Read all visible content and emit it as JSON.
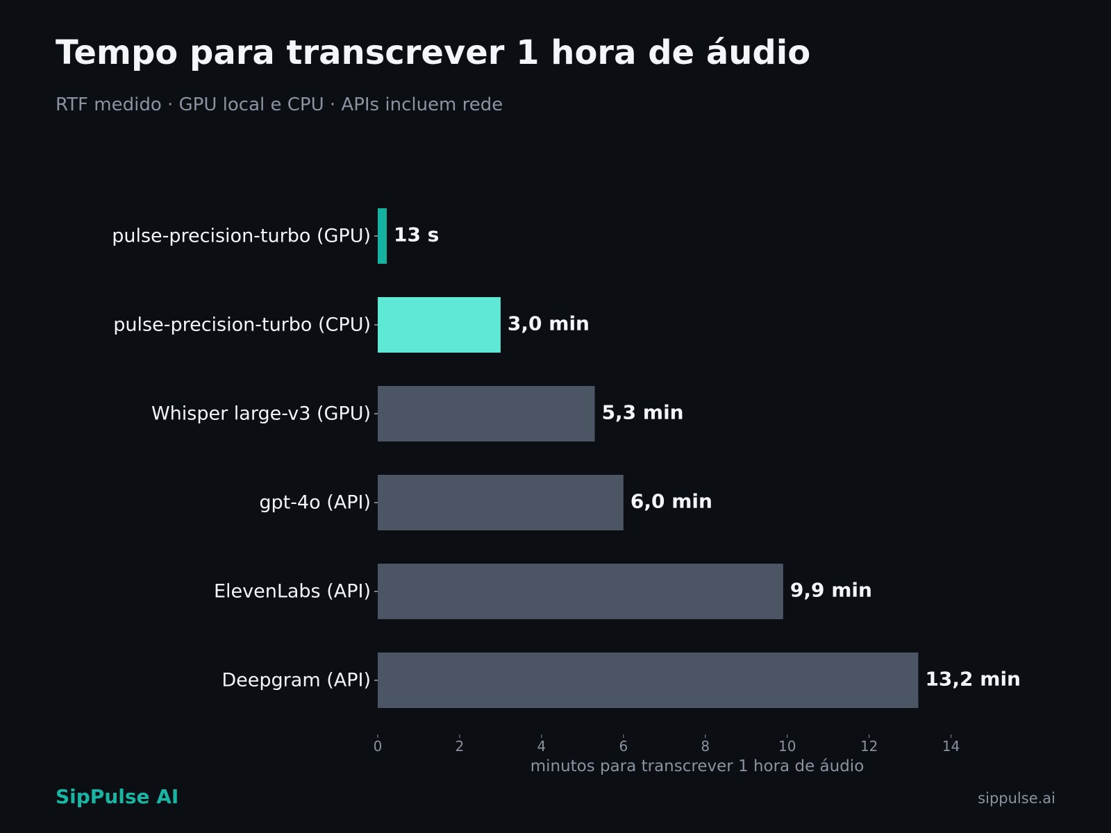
{
  "header": {
    "title": "Tempo para transcrever 1 hora de áudio",
    "subtitle": "RTF medido · GPU local e CPU · APIs incluem rede"
  },
  "footer": {
    "brand": "SipPulse AI",
    "site": "sippulse.ai"
  },
  "chart_data": {
    "type": "bar",
    "orientation": "horizontal",
    "categories": [
      "pulse-precision-turbo (GPU)",
      "pulse-precision-turbo (CPU)",
      "Whisper large-v3 (GPU)",
      "gpt-4o (API)",
      "ElevenLabs (API)",
      "Deepgram (API)"
    ],
    "values": [
      0.22,
      3.0,
      5.3,
      6.0,
      9.9,
      13.2
    ],
    "value_labels": [
      "13 s",
      "3,0 min",
      "5,3 min",
      "6,0 min",
      "9,9 min",
      "13,2 min"
    ],
    "bar_colors": [
      "#14b3a1",
      "#5ee8d6",
      "#4b5564",
      "#4b5564",
      "#4b5564",
      "#4b5564"
    ],
    "xlabel": "minutos para transcrever 1 hora de áudio",
    "ylabel": "",
    "xlim": [
      0,
      15.6
    ],
    "xticks": [
      0,
      2,
      4,
      6,
      8,
      10,
      12,
      14
    ],
    "grid": false,
    "colors": {
      "background": "#0b0e13",
      "text": "#f3f5f8",
      "muted": "#8b93a0",
      "accent": "#19b5a2"
    }
  }
}
